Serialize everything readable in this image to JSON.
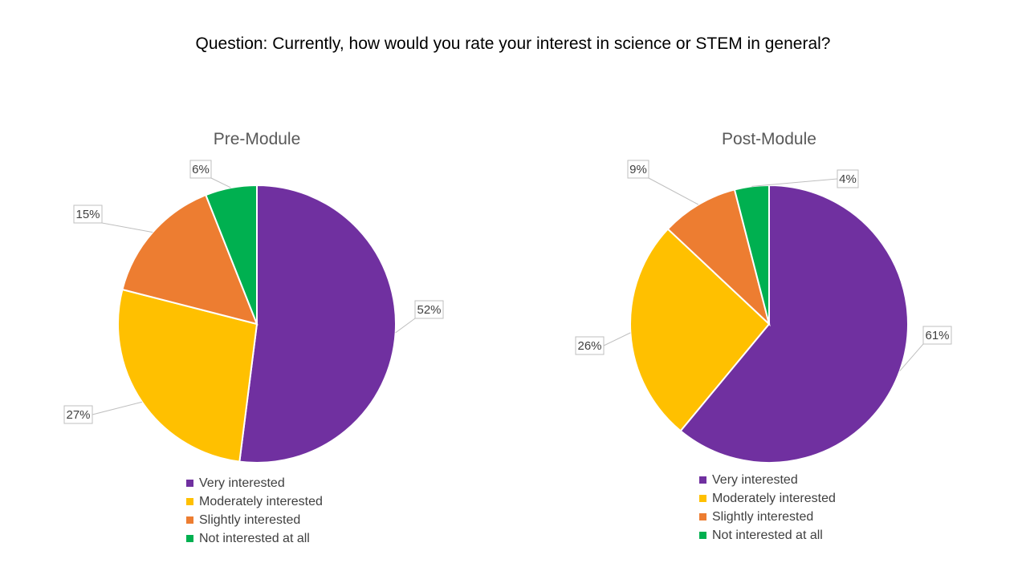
{
  "page": {
    "question": "Question: Currently, how would you rate your interest in science or STEM in general?"
  },
  "chart_data": [
    {
      "type": "pie",
      "title": "Pre-Module",
      "categories": [
        "Very interested",
        "Moderately interested",
        "Slightly interested",
        "Not interested at all"
      ],
      "values": [
        52,
        27,
        15,
        6
      ],
      "labels": [
        "52%",
        "27%",
        "15%",
        "6%"
      ],
      "colors": [
        "#7030A0",
        "#FFC000",
        "#ED7D31",
        "#00B050"
      ],
      "legend_position": "bottom"
    },
    {
      "type": "pie",
      "title": "Post-Module",
      "categories": [
        "Very interested",
        "Moderately interested",
        "Slightly interested",
        "Not interested at all"
      ],
      "values": [
        61,
        26,
        9,
        4
      ],
      "labels": [
        "61%",
        "26%",
        "9%",
        "4%"
      ],
      "colors": [
        "#7030A0",
        "#FFC000",
        "#ED7D31",
        "#00B050"
      ],
      "legend_position": "bottom"
    }
  ]
}
